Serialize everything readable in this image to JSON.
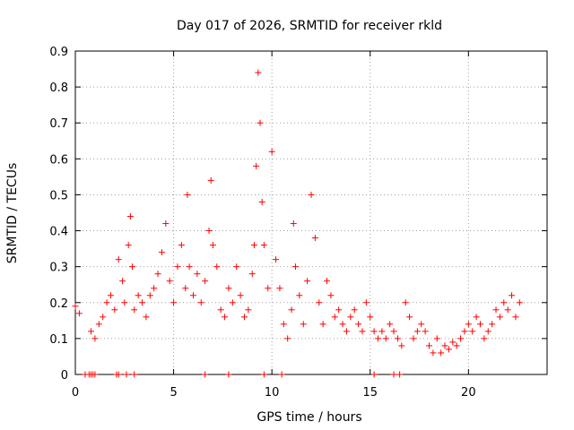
{
  "chart_data": {
    "type": "scatter",
    "title": "Day 017 of 2026, SRMTID for receiver rkld",
    "xlabel": "GPS time / hours",
    "ylabel": "SRMTID / TECUs",
    "xlim": [
      0,
      24
    ],
    "ylim": [
      0,
      0.9
    ],
    "xticks": [
      0,
      5,
      10,
      15,
      20
    ],
    "yticks": [
      0,
      0.1,
      0.2,
      0.3,
      0.4,
      0.5,
      0.6,
      0.7,
      0.8,
      0.9
    ],
    "xtick_labels": [
      "0",
      "5",
      "10",
      "15",
      "20"
    ],
    "ytick_labels": [
      "0",
      "0.1",
      "0.2",
      "0.3",
      "0.4",
      "0.5",
      "0.6",
      "0.7",
      "0.8",
      "0.9"
    ],
    "grid": true,
    "marker": "+",
    "color": "#ff0000",
    "series": [
      {
        "name": "SRMTID",
        "x": [
          0.0,
          0.2,
          0.5,
          0.8,
          1.0,
          1.2,
          1.4,
          1.6,
          1.8,
          2.0,
          2.2,
          2.4,
          2.5,
          2.7,
          2.8,
          2.9,
          3.0,
          3.2,
          3.4,
          3.6,
          3.8,
          4.0,
          4.2,
          4.4,
          4.6,
          4.8,
          5.0,
          5.2,
          5.4,
          5.6,
          5.7,
          5.8,
          6.0,
          6.2,
          6.4,
          6.6,
          6.8,
          6.9,
          7.0,
          7.2,
          7.4,
          7.6,
          7.8,
          8.0,
          8.2,
          8.4,
          8.6,
          8.8,
          9.0,
          9.1,
          9.2,
          9.3,
          9.4,
          9.5,
          9.6,
          9.8,
          10.0,
          10.2,
          10.4,
          10.6,
          10.8,
          11.0,
          11.1,
          11.2,
          11.4,
          11.6,
          11.8,
          12.0,
          12.2,
          12.4,
          12.6,
          12.8,
          13.0,
          13.2,
          13.4,
          13.6,
          13.8,
          14.0,
          14.2,
          14.4,
          14.6,
          14.8,
          15.0,
          15.2,
          15.4,
          15.6,
          15.8,
          16.0,
          16.2,
          16.4,
          16.6,
          16.8,
          17.0,
          17.2,
          17.4,
          17.6,
          17.8,
          18.0,
          18.2,
          18.4,
          18.6,
          18.8,
          19.0,
          19.2,
          19.4,
          19.6,
          19.8,
          20.0,
          20.2,
          20.4,
          20.6,
          20.8,
          21.0,
          21.2,
          21.4,
          21.6,
          21.8,
          22.0,
          22.2,
          22.4,
          22.6
        ],
        "y": [
          0.19,
          0.17,
          0.0,
          0.12,
          0.1,
          0.14,
          0.16,
          0.2,
          0.22,
          0.18,
          0.32,
          0.26,
          0.2,
          0.36,
          0.44,
          0.3,
          0.18,
          0.22,
          0.2,
          0.16,
          0.22,
          0.24,
          0.28,
          0.34,
          0.42,
          0.26,
          0.2,
          0.3,
          0.36,
          0.24,
          0.5,
          0.3,
          0.22,
          0.28,
          0.2,
          0.26,
          0.4,
          0.54,
          0.36,
          0.3,
          0.18,
          0.16,
          0.24,
          0.2,
          0.3,
          0.22,
          0.16,
          0.18,
          0.28,
          0.36,
          0.58,
          0.84,
          0.7,
          0.48,
          0.36,
          0.24,
          0.62,
          0.32,
          0.24,
          0.14,
          0.1,
          0.18,
          0.42,
          0.3,
          0.22,
          0.14,
          0.26,
          0.5,
          0.38,
          0.2,
          0.14,
          0.26,
          0.22,
          0.16,
          0.18,
          0.14,
          0.12,
          0.16,
          0.18,
          0.14,
          0.12,
          0.2,
          0.16,
          0.12,
          0.1,
          0.12,
          0.1,
          0.14,
          0.12,
          0.1,
          0.08,
          0.2,
          0.16,
          0.1,
          0.12,
          0.14,
          0.12,
          0.08,
          0.06,
          0.1,
          0.06,
          0.08,
          0.07,
          0.09,
          0.08,
          0.1,
          0.12,
          0.14,
          0.12,
          0.16,
          0.14,
          0.1,
          0.12,
          0.14,
          0.18,
          0.16,
          0.2,
          0.18,
          0.22,
          0.16,
          0.2
        ]
      }
    ],
    "zero_markers_x": [
      0.7,
      0.8,
      0.9,
      1.0,
      2.1,
      2.2,
      2.6,
      3.0,
      6.6,
      7.8,
      9.6,
      10.5,
      15.2,
      16.2,
      16.5
    ]
  }
}
